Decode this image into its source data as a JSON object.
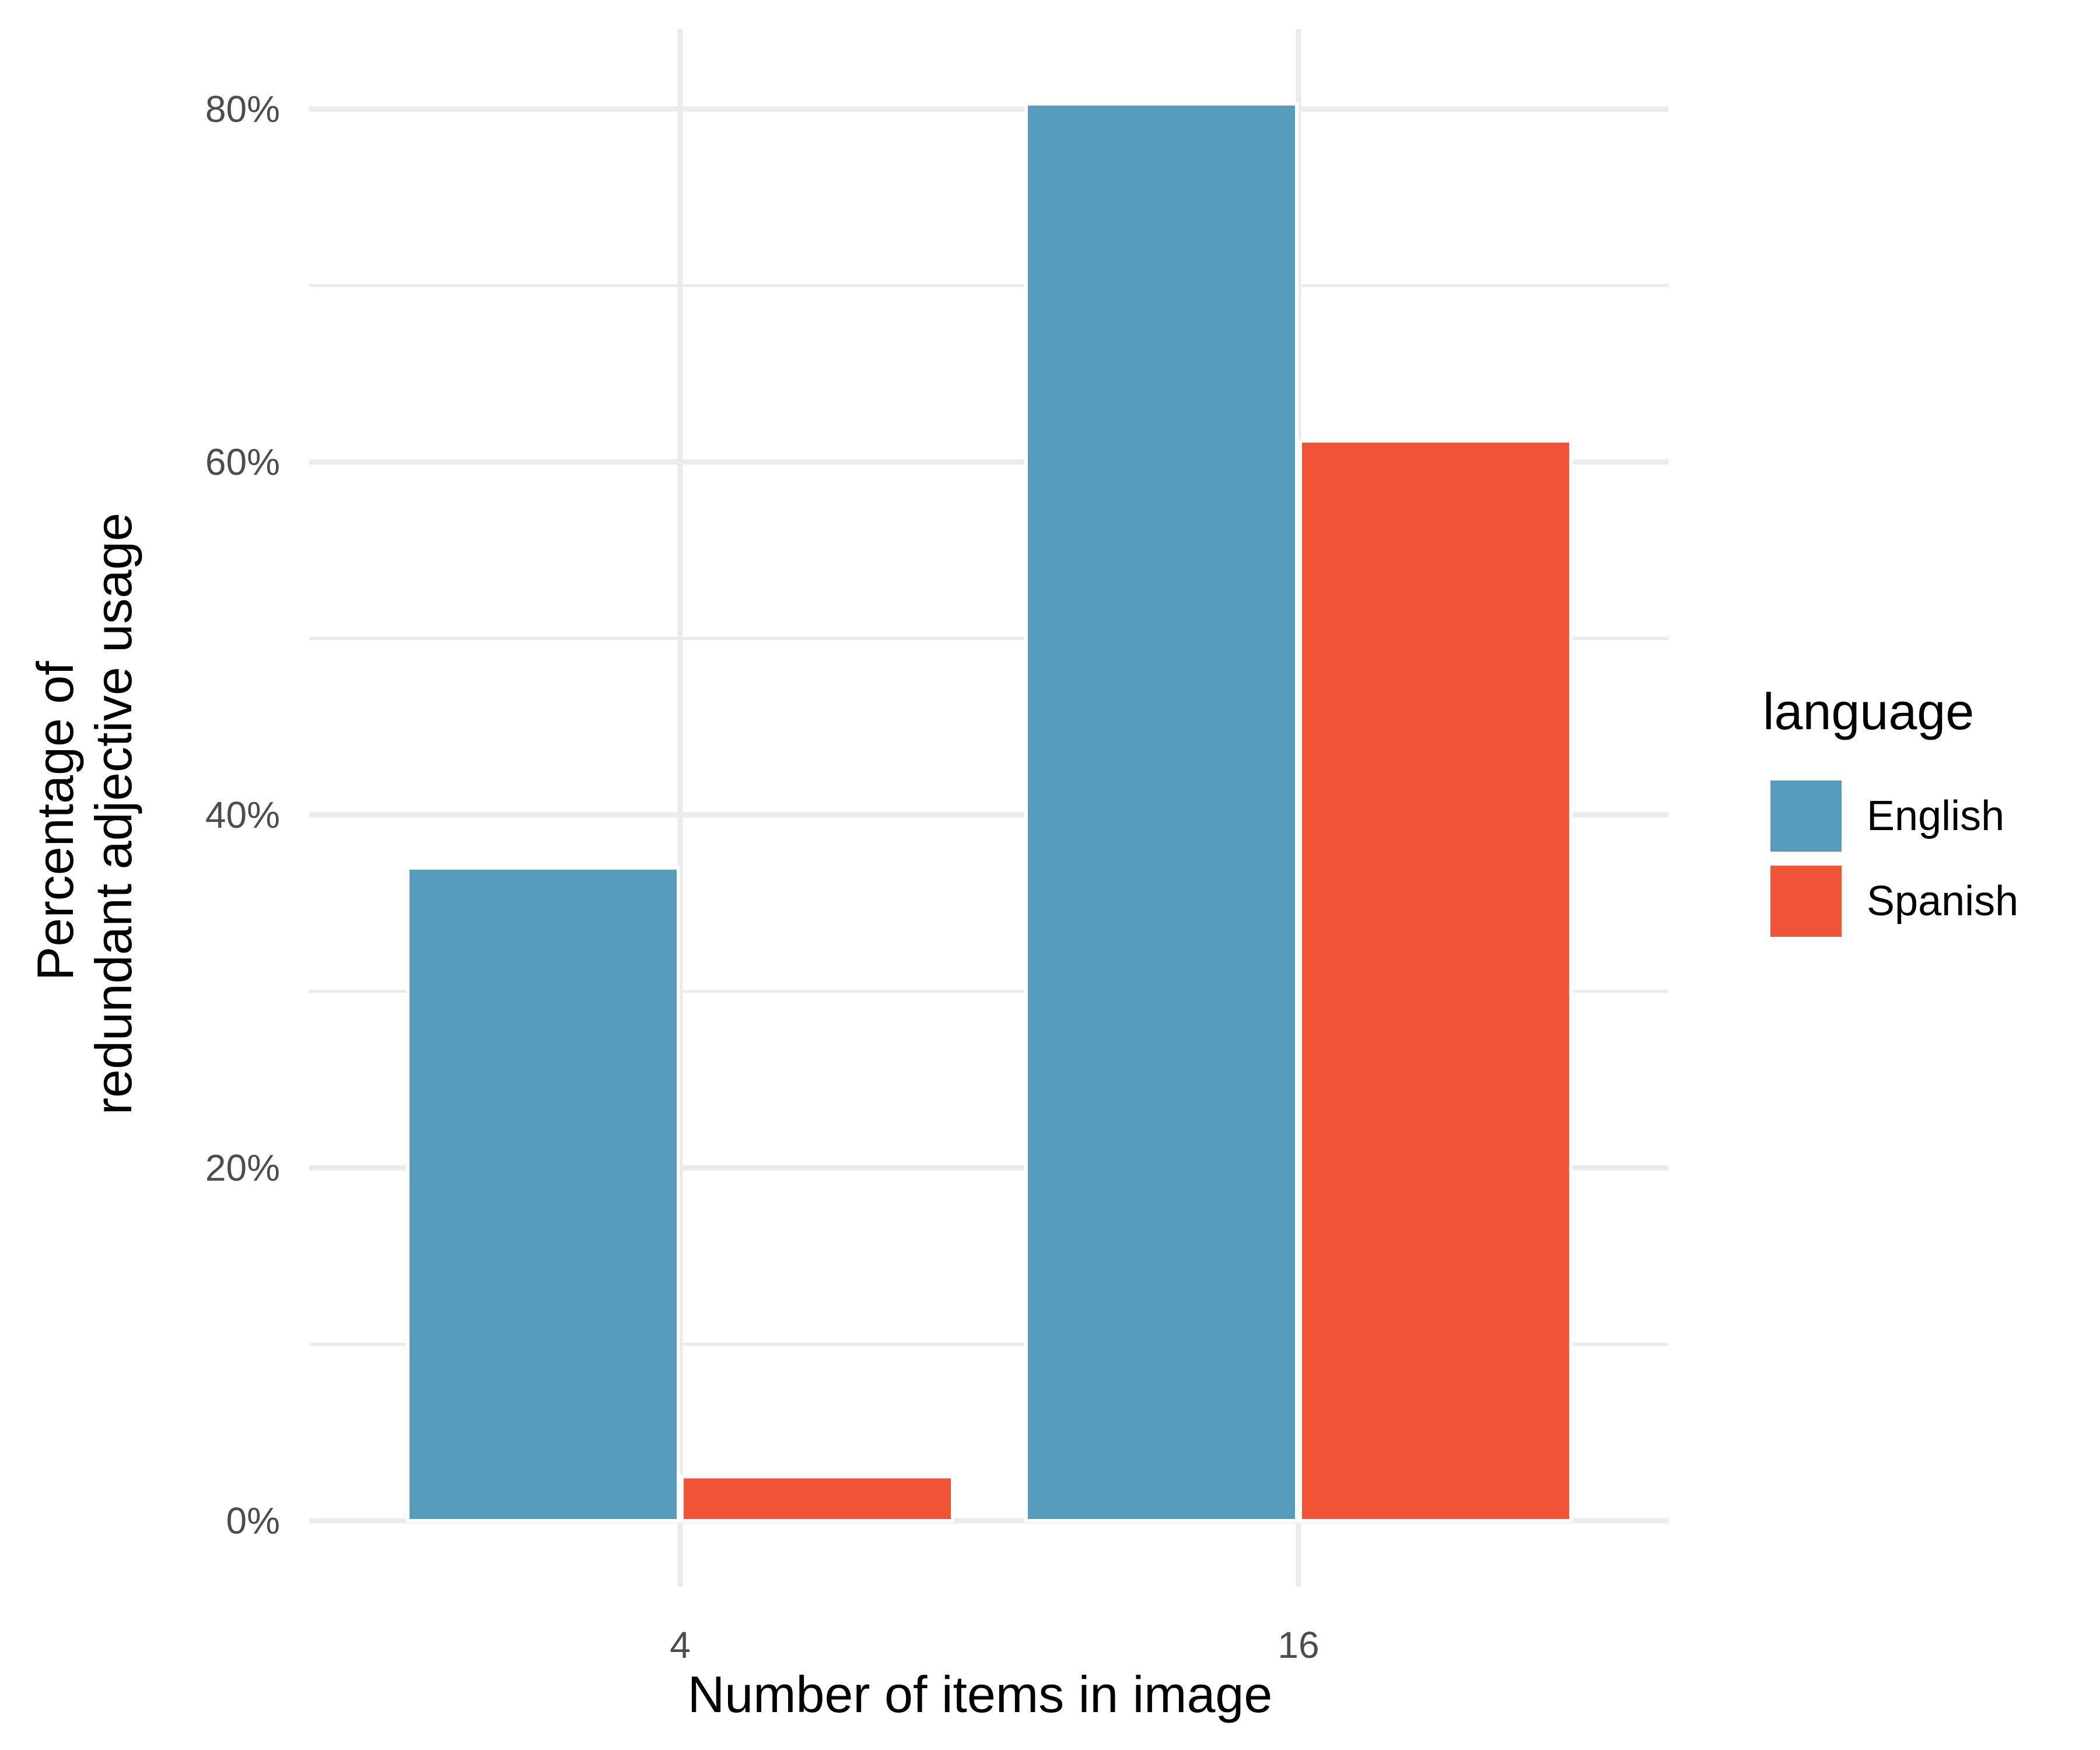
{
  "chart_data": {
    "type": "bar",
    "categories": [
      "4",
      "16"
    ],
    "series": [
      {
        "name": "English",
        "values": [
          37,
          80.3
        ]
      },
      {
        "name": "Spanish",
        "values": [
          2.5,
          61.2
        ]
      }
    ],
    "title": "",
    "xlabel": "Number of items in image",
    "ylabel_lines": [
      "Percentage of",
      "redundant adjective usage"
    ],
    "ylim": [
      0,
      80
    ],
    "yticks": [
      0,
      20,
      40,
      60,
      80
    ],
    "ytick_labels": [
      "0%",
      "20%",
      "40%",
      "60%",
      "80%"
    ],
    "legend_title": "language",
    "legend_position": "right",
    "grid": true,
    "colors": {
      "English": "#579bbd",
      "Spanish": "#f05336"
    }
  }
}
